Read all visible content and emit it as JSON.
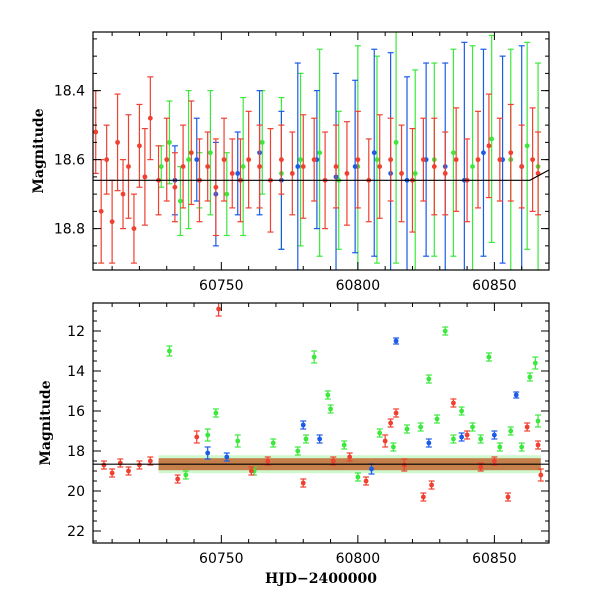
{
  "chart_data": [
    {
      "id": "top",
      "type": "scatter",
      "xlabel": "",
      "ylabel": "Magnitude",
      "xlim": [
        60703,
        60870
      ],
      "ylim": [
        18.92,
        18.23
      ],
      "y_inverted": true,
      "grid": false,
      "x_ticks": [
        60750,
        60800,
        60850
      ],
      "x_tick_labels": [
        "60750",
        "60800",
        "60850"
      ],
      "y_ticks": [
        18.4,
        18.6,
        18.8
      ],
      "y_tick_labels": [
        "18.4",
        "18.6",
        "18.8"
      ],
      "reference_line": [
        [
          60703,
          18.66
        ],
        [
          60863,
          18.66
        ],
        [
          60870,
          18.63
        ]
      ],
      "series": [
        {
          "color": "#3ce83c",
          "x": [
            60728,
            60731,
            60735,
            60738,
            60742,
            60746,
            60752,
            60758,
            60765,
            60772,
            60779,
            60786,
            60793,
            60800,
            60807,
            60814,
            60821,
            60828,
            60835,
            60842,
            60849,
            60856,
            60862,
            60866
          ],
          "y": [
            18.62,
            18.55,
            18.72,
            18.6,
            18.66,
            18.58,
            18.7,
            18.62,
            18.55,
            18.64,
            18.6,
            18.58,
            18.66,
            18.62,
            18.6,
            18.55,
            18.64,
            18.6,
            18.58,
            18.62,
            18.54,
            18.6,
            18.56,
            18.62
          ],
          "err": [
            0.06,
            0.12,
            0.1,
            0.2,
            0.08,
            0.18,
            0.12,
            0.2,
            0.15,
            0.22,
            0.25,
            0.3,
            0.2,
            0.35,
            0.3,
            0.35,
            0.3,
            0.28,
            0.3,
            0.35,
            0.3,
            0.32,
            0.3,
            0.3
          ]
        },
        {
          "color": "#1a5ce8",
          "x": [
            60733,
            60741,
            60748,
            60756,
            60764,
            60772,
            60778,
            60785,
            60792,
            60799,
            60806,
            60812,
            60818,
            60825,
            60832,
            60839,
            60846,
            60853,
            60860
          ],
          "y": [
            18.66,
            18.6,
            18.7,
            18.64,
            18.58,
            18.66,
            18.62,
            18.6,
            18.65,
            18.62,
            18.58,
            18.64,
            18.66,
            18.6,
            18.62,
            18.66,
            18.58,
            18.6,
            18.62
          ],
          "err": [
            0.1,
            0.12,
            0.15,
            0.12,
            0.18,
            0.2,
            0.3,
            0.2,
            0.3,
            0.25,
            0.3,
            0.35,
            0.3,
            0.28,
            0.3,
            0.4,
            0.3,
            0.3,
            0.35
          ]
        },
        {
          "color": "#f04030",
          "x": [
            60704,
            60706,
            60708,
            60710,
            60712,
            60714,
            60716,
            60718,
            60720,
            60722,
            60724,
            60727,
            60730,
            60733,
            60736,
            60739,
            60742,
            60745,
            60748,
            60751,
            60754,
            60757,
            60760,
            60764,
            60768,
            60772,
            60776,
            60780,
            60784,
            60788,
            60792,
            60796,
            60800,
            60804,
            60808,
            60812,
            60816,
            60820,
            60824,
            60828,
            60832,
            60836,
            60840,
            60844,
            60848,
            60852,
            60856,
            60860,
            60864,
            60866
          ],
          "y": [
            18.52,
            18.75,
            18.6,
            18.78,
            18.55,
            18.7,
            18.62,
            18.8,
            18.56,
            18.65,
            18.48,
            18.66,
            18.6,
            18.68,
            18.62,
            18.58,
            18.66,
            18.62,
            18.68,
            18.6,
            18.64,
            18.66,
            18.6,
            18.62,
            18.66,
            18.6,
            18.64,
            18.62,
            18.6,
            18.66,
            18.62,
            18.64,
            18.6,
            18.66,
            18.62,
            18.6,
            18.64,
            18.66,
            18.6,
            18.62,
            18.64,
            18.6,
            18.66,
            18.6,
            18.56,
            18.6,
            18.58,
            18.62,
            18.6,
            18.64
          ],
          "err": [
            0.12,
            0.15,
            0.1,
            0.12,
            0.14,
            0.1,
            0.15,
            0.1,
            0.12,
            0.14,
            0.12,
            0.1,
            0.12,
            0.1,
            0.12,
            0.15,
            0.12,
            0.1,
            0.14,
            0.12,
            0.1,
            0.12,
            0.14,
            0.12,
            0.15,
            0.1,
            0.12,
            0.15,
            0.12,
            0.14,
            0.12,
            0.15,
            0.14,
            0.12,
            0.15,
            0.12,
            0.14,
            0.15,
            0.12,
            0.14,
            0.12,
            0.15,
            0.12,
            0.14,
            0.15,
            0.12,
            0.14,
            0.12,
            0.15,
            0.12
          ]
        }
      ]
    },
    {
      "id": "bottom",
      "type": "scatter",
      "xlabel": "HJD−2400000",
      "ylabel": "Magnitude",
      "xlim": [
        60703,
        60870
      ],
      "ylim": [
        22.6,
        10.6
      ],
      "y_inverted": true,
      "grid": false,
      "x_ticks": [
        60750,
        60800,
        60850
      ],
      "x_tick_labels": [
        "60750",
        "60800",
        "60850"
      ],
      "y_ticks": [
        12,
        14,
        16,
        18,
        20,
        22
      ],
      "y_tick_labels": [
        "12",
        "14",
        "16",
        "18",
        "20",
        "22"
      ],
      "reference_line": [
        [
          60703,
          18.66
        ],
        [
          60870,
          18.66
        ]
      ],
      "band": {
        "x_start": 60727,
        "x_end": 60867,
        "y_center": 18.66,
        "half_width": 0.3
      },
      "series": [
        {
          "color": "#3ce83c",
          "x": [
            60731,
            60737,
            60745,
            60748,
            60756,
            60762,
            60769,
            60778,
            60781,
            60784,
            60789,
            60790,
            60795,
            60800,
            60808,
            60813,
            60818,
            60823,
            60826,
            60829,
            60832,
            60835,
            60838,
            60842,
            60845,
            60848,
            60852,
            60856,
            60860,
            60863,
            60865,
            60866
          ],
          "y": [
            13.0,
            19.2,
            17.2,
            16.1,
            17.5,
            19.0,
            17.6,
            18.0,
            17.4,
            13.3,
            15.2,
            15.9,
            17.7,
            19.3,
            17.1,
            17.8,
            16.9,
            16.8,
            14.4,
            16.4,
            12.0,
            17.4,
            16.0,
            16.8,
            17.4,
            13.3,
            17.8,
            17.0,
            17.8,
            14.3,
            13.6,
            16.5
          ],
          "err": [
            0.25,
            0.2,
            0.3,
            0.2,
            0.3,
            0.2,
            0.2,
            0.2,
            0.2,
            0.3,
            0.2,
            0.2,
            0.2,
            0.2,
            0.2,
            0.2,
            0.2,
            0.2,
            0.2,
            0.2,
            0.2,
            0.2,
            0.2,
            0.2,
            0.2,
            0.2,
            0.2,
            0.2,
            0.2,
            0.2,
            0.3,
            0.3
          ]
        },
        {
          "color": "#1a5ce8",
          "x": [
            60745,
            60752,
            60780,
            60786,
            60805,
            60814,
            60826,
            60838,
            60850,
            60858
          ],
          "y": [
            18.1,
            18.3,
            16.7,
            17.4,
            18.9,
            12.5,
            17.6,
            17.3,
            17.2,
            15.2
          ],
          "err": [
            0.3,
            0.2,
            0.2,
            0.2,
            0.25,
            0.15,
            0.2,
            0.2,
            0.2,
            0.15
          ]
        },
        {
          "color": "#f04030",
          "x": [
            60707,
            60710,
            60713,
            60716,
            60720,
            60724,
            60734,
            60741,
            60749,
            60761,
            60767,
            60780,
            60791,
            60797,
            60803,
            60810,
            60812,
            60814,
            60817,
            60824,
            60827,
            60835,
            60840,
            60845,
            60850,
            60855,
            60862,
            60866,
            60867
          ],
          "y": [
            18.7,
            19.1,
            18.6,
            19.0,
            18.7,
            18.5,
            19.4,
            17.3,
            10.9,
            19.0,
            18.5,
            19.6,
            18.5,
            18.3,
            19.5,
            17.5,
            16.6,
            16.1,
            18.7,
            20.3,
            19.7,
            15.6,
            17.2,
            18.8,
            18.5,
            20.3,
            16.8,
            17.7,
            19.2
          ],
          "err": [
            0.2,
            0.2,
            0.2,
            0.2,
            0.2,
            0.2,
            0.2,
            0.3,
            0.35,
            0.2,
            0.2,
            0.2,
            0.2,
            0.2,
            0.2,
            0.3,
            0.2,
            0.2,
            0.3,
            0.2,
            0.2,
            0.2,
            0.2,
            0.2,
            0.2,
            0.2,
            0.2,
            0.2,
            0.3
          ]
        }
      ]
    }
  ]
}
